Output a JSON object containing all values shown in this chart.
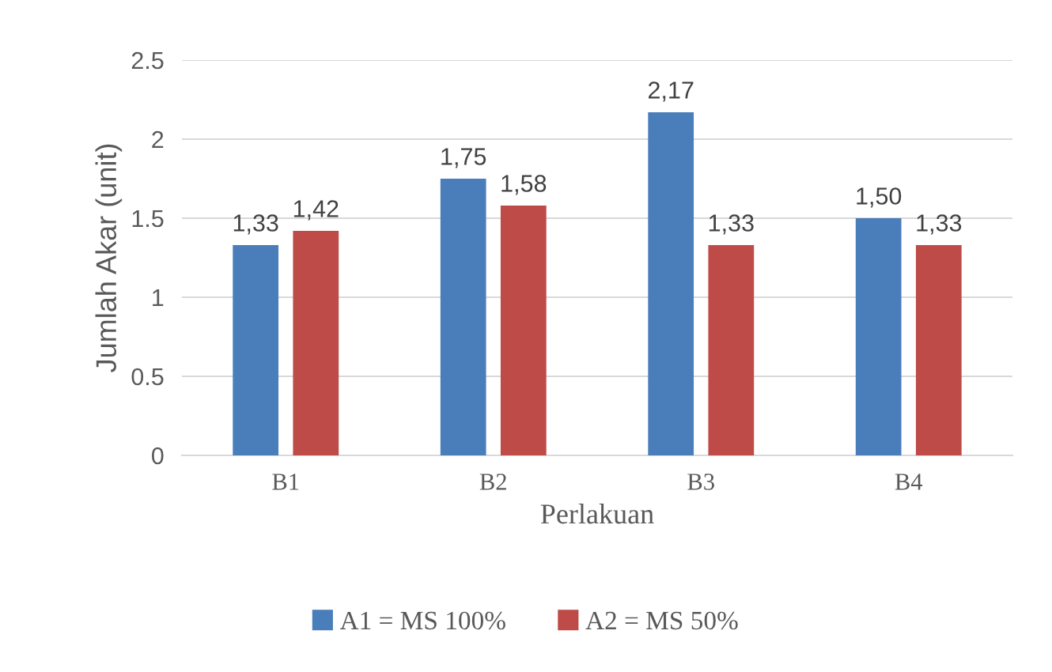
{
  "chart_data": {
    "type": "bar",
    "xlabel": "Perlakuan",
    "ylabel": "Jumlah Akar (unit)",
    "categories": [
      "B1",
      "B2",
      "B3",
      "B4"
    ],
    "series": [
      {
        "name": "A1 = MS 100%",
        "color": "#4a7ebb",
        "values": [
          1.33,
          1.75,
          2.17,
          1.5
        ],
        "value_labels": [
          "1,33",
          "1,75",
          "2,17",
          "1,50"
        ]
      },
      {
        "name": "A2 = MS 50%",
        "color": "#be4b48",
        "values": [
          1.42,
          1.58,
          1.33,
          1.33
        ],
        "value_labels": [
          "1,42",
          "1,58",
          "1,33",
          "1,33"
        ]
      }
    ],
    "ylim": [
      0,
      2.5
    ],
    "yticks": [
      0,
      0.5,
      1,
      1.5,
      2,
      2.5
    ],
    "grid": "y",
    "legend": "bottom"
  }
}
